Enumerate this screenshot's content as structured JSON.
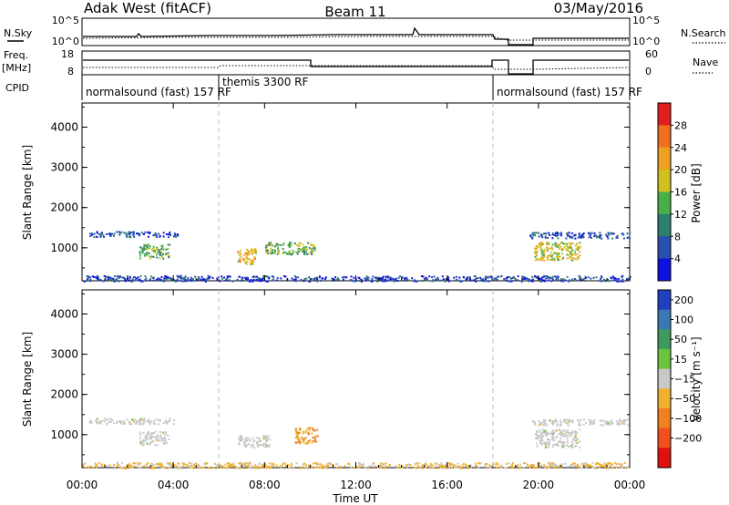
{
  "header": {
    "station": "Adak West (fitACF)",
    "beam": "Beam 11",
    "date": "03/May/2016"
  },
  "panels": {
    "nsky_label": "N.Sky",
    "nsearch_label": "N.Search",
    "freq_label_1": "Freq.",
    "freq_label_2": "[MHz]",
    "nave_label": "Nave",
    "cpid_label": "CPID",
    "nsky_ticks": [
      "10^5",
      "10^0"
    ],
    "nsearch_ticks": [
      "10^5",
      "10^0"
    ],
    "freq_ticks": [
      "18",
      "8"
    ],
    "nave_ticks": [
      "60",
      "0"
    ]
  },
  "cpid_segments": [
    {
      "label": "normalsound (fast) 157 RF",
      "start_hour": 0,
      "end_hour": 6
    },
    {
      "label": "themis 3300 RF",
      "start_hour": 6,
      "end_hour": 18
    },
    {
      "label": "normalsound (fast) 157 RF",
      "start_hour": 18,
      "end_hour": 24
    }
  ],
  "chart_data": [
    {
      "type": "heatmap",
      "name": "power",
      "ylabel": "Slant Range [km]",
      "xlabel": "Time UT",
      "xlim": [
        0,
        24
      ],
      "ylim": [
        180,
        4600
      ],
      "x_tick_labels": [
        "00:00",
        "04:00",
        "08:00",
        "12:00",
        "16:00",
        "20:00",
        "00:00"
      ],
      "y_tick_labels": [
        "1000",
        "2000",
        "3000",
        "4000"
      ],
      "colorbar": {
        "label": "Power [dB]",
        "tick_labels": [
          "4",
          "8",
          "12",
          "16",
          "20",
          "24",
          "28"
        ],
        "colors": [
          "#1010e0",
          "#2850b0",
          "#2f7f6f",
          "#48b048",
          "#d0c020",
          "#f0a020",
          "#f07020",
          "#e02020"
        ],
        "range": [
          0,
          32
        ]
      },
      "regions": [
        {
          "t_start": 0.3,
          "t_end": 4.2,
          "r_min": 1280,
          "r_max": 1420,
          "power": 6
        },
        {
          "t_start": 2.5,
          "t_end": 3.8,
          "r_min": 750,
          "r_max": 1100,
          "power": 14
        },
        {
          "t_start": 6.8,
          "t_end": 7.6,
          "r_min": 600,
          "r_max": 1000,
          "power": 20
        },
        {
          "t_start": 8.0,
          "t_end": 10.2,
          "r_min": 850,
          "r_max": 1150,
          "power": 14
        },
        {
          "t_start": 19.6,
          "t_end": 24.0,
          "r_min": 1250,
          "r_max": 1400,
          "power": 6
        },
        {
          "t_start": 19.8,
          "t_end": 21.8,
          "r_min": 700,
          "r_max": 1150,
          "power": 18
        },
        {
          "t_start": 0.0,
          "t_end": 24.0,
          "r_min": 180,
          "r_max": 320,
          "power": 5
        }
      ]
    },
    {
      "type": "heatmap",
      "name": "velocity",
      "ylabel": "Slant Range [km]",
      "xlabel": "Time UT",
      "xlim": [
        0,
        24
      ],
      "ylim": [
        180,
        4600
      ],
      "x_tick_labels": [
        "00:00",
        "04:00",
        "08:00",
        "12:00",
        "16:00",
        "20:00",
        "00:00"
      ],
      "y_tick_labels": [
        "1000",
        "2000",
        "3000",
        "4000"
      ],
      "colorbar": {
        "label": "Velocity [m s⁻¹]",
        "tick_labels": [
          "200",
          "100",
          "50",
          "15",
          "−15",
          "−50",
          "−100",
          "−200"
        ],
        "colors": [
          "#2040c0",
          "#3c78b0",
          "#3f9a5f",
          "#6cc43c",
          "#c8c8c8",
          "#f0b030",
          "#f08020",
          "#f05020",
          "#e01010"
        ],
        "range": [
          -250,
          250
        ]
      },
      "regions": [
        {
          "t_start": 0.3,
          "t_end": 4.2,
          "r_min": 1280,
          "r_max": 1420,
          "velocity": 0
        },
        {
          "t_start": 2.5,
          "t_end": 3.8,
          "r_min": 750,
          "r_max": 1100,
          "velocity": 0
        },
        {
          "t_start": 6.8,
          "t_end": 8.2,
          "r_min": 700,
          "r_max": 1000,
          "velocity": 0
        },
        {
          "t_start": 9.3,
          "t_end": 10.3,
          "r_min": 800,
          "r_max": 1200,
          "velocity": -80
        },
        {
          "t_start": 19.6,
          "t_end": 24.0,
          "r_min": 1250,
          "r_max": 1400,
          "velocity": 0
        },
        {
          "t_start": 19.8,
          "t_end": 21.8,
          "r_min": 700,
          "r_max": 1150,
          "velocity": 0
        },
        {
          "t_start": 0.0,
          "t_end": 24.0,
          "r_min": 180,
          "r_max": 320,
          "velocity": -40
        }
      ]
    }
  ]
}
